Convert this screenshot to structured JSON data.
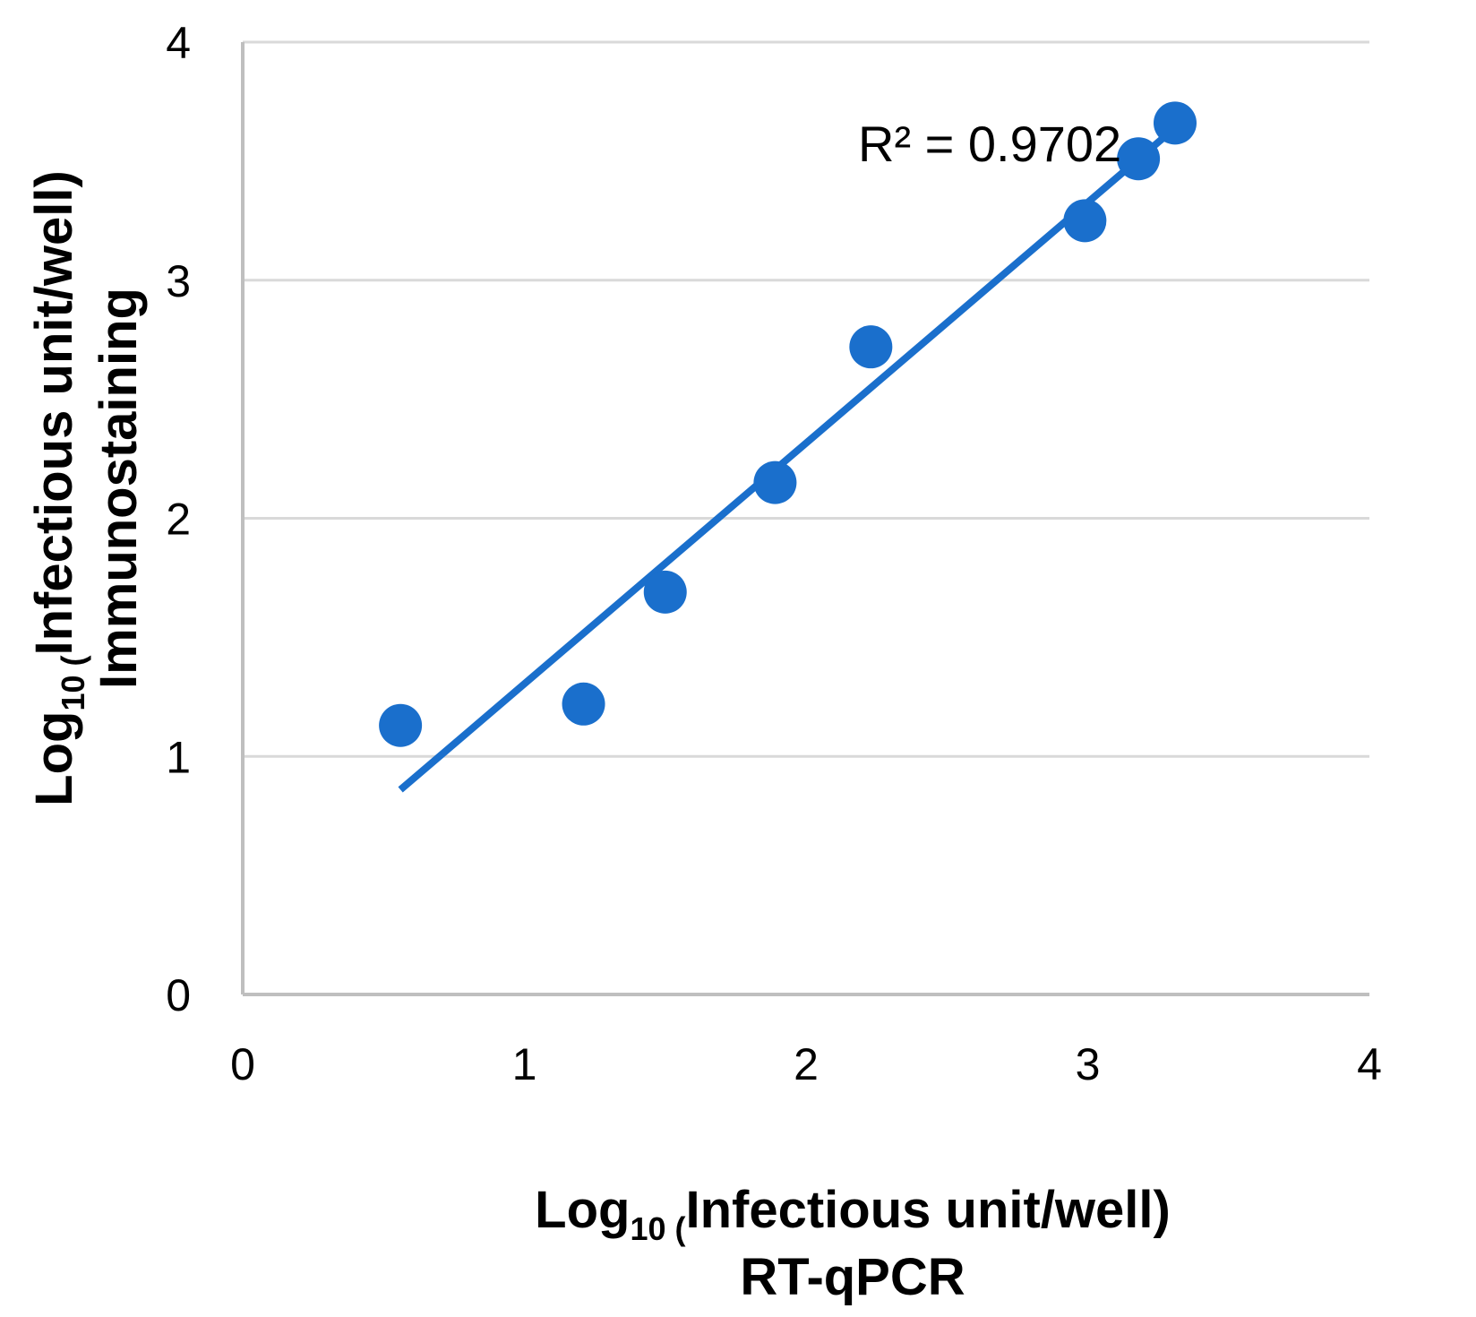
{
  "chart_data": {
    "type": "scatter",
    "title": "",
    "xlabel": {
      "prefix": "Log",
      "subscript": "10 (",
      "main": "Infectious unit/well)",
      "second_line": "RT-qPCR"
    },
    "ylabel": {
      "prefix": "Log",
      "subscript": "10 (",
      "main": "Infectious unit/well)",
      "second_line": "Immunostaining"
    },
    "xlim": [
      0,
      4
    ],
    "ylim": [
      0,
      4
    ],
    "x_ticks": [
      "0",
      "1",
      "2",
      "3",
      "4"
    ],
    "y_ticks": [
      "0",
      "1",
      "2",
      "3",
      "4"
    ],
    "grid": "horizontal",
    "legend": "none",
    "series": [
      {
        "points": [
          {
            "x": 0.56,
            "y": 1.13
          },
          {
            "x": 1.21,
            "y": 1.22
          },
          {
            "x": 1.5,
            "y": 1.69
          },
          {
            "x": 1.89,
            "y": 2.15
          },
          {
            "x": 2.23,
            "y": 2.72
          },
          {
            "x": 2.99,
            "y": 3.25
          },
          {
            "x": 3.18,
            "y": 3.51
          },
          {
            "x": 3.31,
            "y": 3.66
          }
        ]
      }
    ],
    "trendline": {
      "type": "linear",
      "x_start": 0.56,
      "y_start": 0.86,
      "x_end": 3.31,
      "y_end": 3.64
    },
    "annotation": "R² = 0.9702",
    "colors": {
      "marker": "#1a6fcc",
      "trendline": "#1a6fcc",
      "grid": "#d9d9d9",
      "axis": "#bfbfbf"
    }
  }
}
